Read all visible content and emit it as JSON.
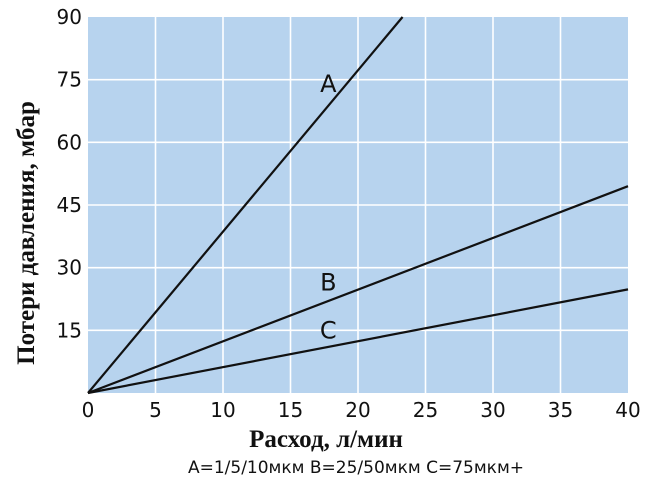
{
  "chart_data": {
    "type": "line",
    "xlabel": "Расход, л/мин",
    "ylabel": "Потери давления, мбар",
    "xlim": [
      0,
      40
    ],
    "ylim": [
      0,
      90
    ],
    "x_ticks": [
      0,
      5,
      10,
      15,
      20,
      25,
      30,
      35,
      40
    ],
    "y_ticks": [
      15,
      30,
      45,
      60,
      75,
      90
    ],
    "grid": true,
    "background_color": "#b7d3ee",
    "grid_color": "#ffffff",
    "line_color": "#111111",
    "series": [
      {
        "name": "A",
        "x": [
          0,
          23.3
        ],
        "y": [
          0,
          90
        ]
      },
      {
        "name": "B",
        "x": [
          0,
          40
        ],
        "y": [
          0,
          49.5
        ]
      },
      {
        "name": "C",
        "x": [
          0,
          40
        ],
        "y": [
          0,
          24.8
        ]
      }
    ],
    "curve_labels": [
      {
        "text": "A",
        "series": "A",
        "x": 17.8,
        "y": 72
      },
      {
        "text": "B",
        "series": "B",
        "x": 17.8,
        "y": 24.5
      },
      {
        "text": "C",
        "series": "C",
        "x": 17.8,
        "y": 13
      }
    ],
    "caption": "A=1/5/10мкм B=25/50мкм C=75мкм+"
  }
}
